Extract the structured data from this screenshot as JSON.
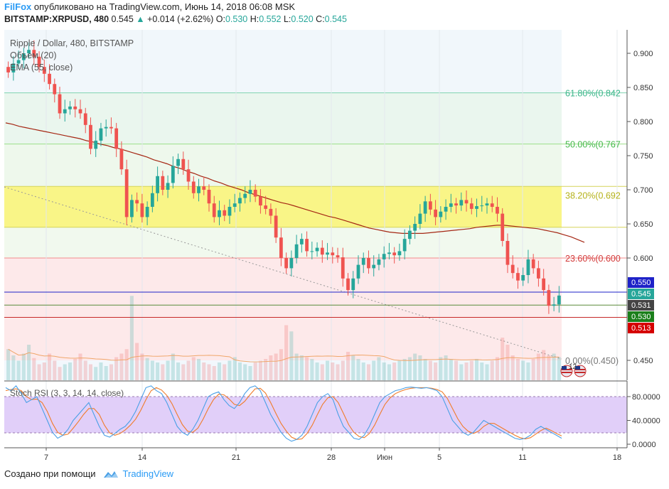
{
  "header": {
    "brand": "FilFox",
    "published": "опубликовано на TradingView.com, Июнь 14, 2018 06:08 MSK",
    "symbol": "BITSTAMP:XRPUSD, 480",
    "last": "0.545",
    "change": "+0.014 (+2.62%)",
    "o_label": "O:",
    "o_value": "0.530",
    "h_label": "H:",
    "h_value": "0.552",
    "l_label": "L:",
    "l_value": "0.520",
    "c_label": "C:",
    "c_value": "0.545"
  },
  "legend": {
    "title": "Ripple / Dollar, 480, BITSTAMP",
    "volume": "Объем (20)",
    "ema": "EMA (55, close)",
    "stoch": "Stoch RSI (3, 3, 14, 14, close)"
  },
  "footer": {
    "created": "Создано при помощи",
    "brand": "TradingView"
  },
  "colors": {
    "up": "#26a69a",
    "down": "#ef5350",
    "ema": "#a52714",
    "fib_yellow": "#f9f587",
    "stoch_band": "#e1cff9",
    "blue_line": "#1e22c8",
    "red_line": "#c62828"
  },
  "chart_data": {
    "type": "candlestick",
    "price_axis": {
      "min": 0.43,
      "max": 0.92,
      "ticks": [
        "0.900",
        "0.850",
        "0.800",
        "0.750",
        "0.700",
        "0.650",
        "0.600",
        "0.450"
      ]
    },
    "x_labels": [
      "7",
      "14",
      "21",
      "28",
      "Июн",
      "5",
      "11",
      "18"
    ],
    "fib_levels": [
      {
        "label": "61.80%(0.842",
        "value": 0.842
      },
      {
        "label": "50.00%(0.767",
        "value": 0.767
      },
      {
        "label": "38.20%(0.692",
        "value": 0.692
      },
      {
        "label": "23.60%(0.600",
        "value": 0.6
      },
      {
        "label": "0.00%(0.450)",
        "value": 0.45
      }
    ],
    "price_tags": [
      {
        "label": "0.550",
        "value": 0.55,
        "color": "#1e22c8"
      },
      {
        "label": "0.545",
        "value": 0.545,
        "color": "#26a69a"
      },
      {
        "label": "0.531",
        "value": 0.531,
        "color": "#444444"
      },
      {
        "label": "0.530",
        "value": 0.53,
        "color": "#1b7f1b"
      },
      {
        "label": "0.513",
        "value": 0.513,
        "color": "#d50000"
      }
    ],
    "closes": [
      0.872,
      0.885,
      0.89,
      0.9,
      0.905,
      0.895,
      0.88,
      0.87,
      0.855,
      0.84,
      0.812,
      0.818,
      0.822,
      0.818,
      0.812,
      0.795,
      0.76,
      0.772,
      0.79,
      0.792,
      0.79,
      0.76,
      0.73,
      0.66,
      0.685,
      0.68,
      0.66,
      0.675,
      0.695,
      0.72,
      0.7,
      0.71,
      0.735,
      0.745,
      0.73,
      0.712,
      0.695,
      0.705,
      0.7,
      0.68,
      0.66,
      0.67,
      0.662,
      0.675,
      0.68,
      0.688,
      0.694,
      0.7,
      0.69,
      0.677,
      0.672,
      0.662,
      0.63,
      0.6,
      0.585,
      0.6,
      0.62,
      0.628,
      0.61,
      0.61,
      0.615,
      0.605,
      0.608,
      0.604,
      0.601,
      0.57,
      0.553,
      0.57,
      0.59,
      0.6,
      0.585,
      0.59,
      0.598,
      0.606,
      0.608,
      0.604,
      0.61,
      0.628,
      0.64,
      0.65,
      0.665,
      0.683,
      0.671,
      0.66,
      0.668,
      0.675,
      0.68,
      0.677,
      0.685,
      0.68,
      0.672,
      0.676,
      0.677,
      0.68,
      0.675,
      0.665,
      0.625,
      0.59,
      0.578,
      0.567,
      0.575,
      0.598,
      0.585,
      0.57,
      0.553,
      0.53,
      0.532,
      0.545
    ],
    "ema": [
      0.798,
      0.796,
      0.793,
      0.791,
      0.789,
      0.787,
      0.785,
      0.783,
      0.781,
      0.779,
      0.777,
      0.775,
      0.772,
      0.77,
      0.767,
      0.765,
      0.762,
      0.76,
      0.757,
      0.754,
      0.751,
      0.748,
      0.744,
      0.741,
      0.738,
      0.734,
      0.731,
      0.727,
      0.724,
      0.72,
      0.717,
      0.713,
      0.71,
      0.706,
      0.703,
      0.7,
      0.696,
      0.693,
      0.69,
      0.687,
      0.684,
      0.681,
      0.679,
      0.676,
      0.673,
      0.67,
      0.667,
      0.664,
      0.661,
      0.659,
      0.656,
      0.653,
      0.65,
      0.647,
      0.644,
      0.642,
      0.64,
      0.638,
      0.637,
      0.636,
      0.636,
      0.636,
      0.636,
      0.637,
      0.638,
      0.639,
      0.64,
      0.641,
      0.642,
      0.643,
      0.645,
      0.646,
      0.647,
      0.648,
      0.648,
      0.647,
      0.646,
      0.645,
      0.644,
      0.643,
      0.641,
      0.639,
      0.637,
      0.634,
      0.631,
      0.627,
      0.623
    ],
    "volume": [
      0.35,
      0.28,
      0.22,
      0.3,
      0.4,
      0.25,
      0.18,
      0.2,
      0.3,
      0.22,
      0.15,
      0.18,
      0.2,
      0.24,
      0.3,
      0.22,
      0.18,
      0.15,
      0.2,
      0.16,
      0.18,
      0.26,
      0.3,
      0.35,
      0.95,
      0.42,
      0.3,
      0.25,
      0.22,
      0.2,
      0.18,
      0.22,
      0.3,
      0.2,
      0.18,
      0.22,
      0.26,
      0.24,
      0.2,
      0.18,
      0.16,
      0.2,
      0.18,
      0.22,
      0.26,
      0.2,
      0.18,
      0.16,
      0.2,
      0.22,
      0.24,
      0.28,
      0.3,
      0.35,
      0.62,
      0.55,
      0.3,
      0.28,
      0.26,
      0.24,
      0.2,
      0.18,
      0.22,
      0.2,
      0.18,
      0.22,
      0.32,
      0.28,
      0.24,
      0.2,
      0.18,
      0.22,
      0.26,
      0.2,
      0.18,
      0.2,
      0.22,
      0.24,
      0.26,
      0.3,
      0.28,
      0.24,
      0.22,
      0.2,
      0.26,
      0.28,
      0.24,
      0.22,
      0.18,
      0.2,
      0.22,
      0.24,
      0.2,
      0.18,
      0.22,
      0.26,
      0.48,
      0.4,
      0.28,
      0.24,
      0.22,
      0.2,
      0.24,
      0.3,
      0.34,
      0.28,
      0.3,
      0.26
    ],
    "stoch_axis": {
      "ticks": [
        "80.0000",
        "40.0000",
        "0.0000"
      ]
    },
    "stoch_k": [
      95,
      90,
      98,
      85,
      70,
      75,
      80,
      60,
      40,
      20,
      10,
      15,
      25,
      40,
      50,
      60,
      70,
      50,
      30,
      15,
      12,
      18,
      25,
      30,
      40,
      55,
      75,
      95,
      98,
      90,
      85,
      70,
      50,
      30,
      20,
      15,
      25,
      40,
      60,
      80,
      85,
      88,
      75,
      65,
      60,
      70,
      85,
      95,
      98,
      90,
      70,
      50,
      35,
      20,
      10,
      5,
      8,
      15,
      30,
      50,
      70,
      80,
      85,
      75,
      50,
      30,
      20,
      10,
      8,
      15,
      30,
      50,
      70,
      80,
      85,
      90,
      92,
      95,
      96,
      95,
      94,
      95,
      93,
      90,
      80,
      60,
      40,
      30,
      20,
      15,
      20,
      30,
      40,
      35,
      30,
      25,
      20,
      15,
      10,
      8,
      10,
      15,
      25,
      30,
      25,
      20,
      15,
      10
    ],
    "stoch_d": [
      90,
      92,
      93,
      90,
      80,
      75,
      76,
      70,
      55,
      35,
      20,
      15,
      17,
      27,
      38,
      50,
      60,
      60,
      50,
      32,
      19,
      15,
      18,
      24,
      32,
      42,
      57,
      75,
      90,
      95,
      91,
      82,
      68,
      50,
      33,
      22,
      20,
      27,
      42,
      60,
      75,
      84,
      83,
      76,
      67,
      65,
      72,
      83,
      93,
      94,
      86,
      70,
      52,
      35,
      22,
      12,
      8,
      9,
      18,
      32,
      50,
      67,
      78,
      80,
      70,
      52,
      33,
      20,
      13,
      11,
      18,
      32,
      50,
      67,
      78,
      85,
      89,
      92,
      94,
      95,
      95,
      95,
      94,
      92,
      88,
      77,
      60,
      43,
      30,
      22,
      18,
      22,
      30,
      35,
      35,
      30,
      25,
      20,
      15,
      11,
      9,
      11,
      17,
      23,
      27,
      23,
      18,
      14
    ]
  }
}
